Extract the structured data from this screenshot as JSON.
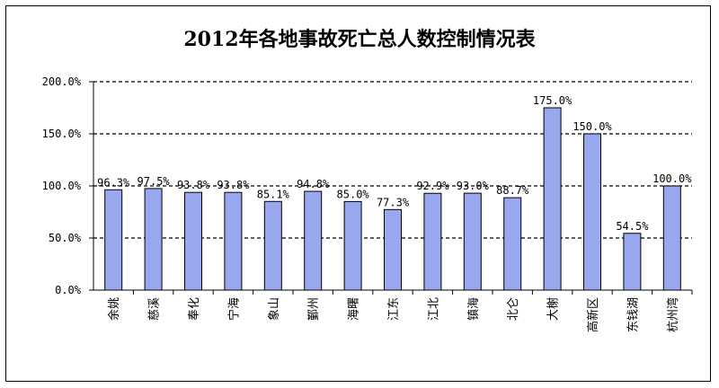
{
  "chart_data": {
    "type": "bar",
    "title": "2012年各地事故死亡总人数控制情况表",
    "categories": [
      "余姚",
      "慈溪",
      "奉化",
      "宁海",
      "象山",
      "鄞州",
      "海曙",
      "江东",
      "江北",
      "镇海",
      "北仑",
      "大榭",
      "高新区",
      "东钱湖",
      "杭州湾"
    ],
    "values": [
      96.3,
      97.5,
      93.8,
      93.8,
      85.1,
      94.8,
      85.0,
      77.3,
      92.9,
      93.0,
      88.7,
      175.0,
      150.0,
      54.5,
      100.0
    ],
    "value_labels": [
      "96.3%",
      "97.5%",
      "93.8%",
      "93.8%",
      "85.1%",
      "94.8%",
      "85.0%",
      "77.3%",
      "92.9%",
      "93.0%",
      "88.7%",
      "175.0%",
      "150.0%",
      "54.5%",
      "100.0%"
    ],
    "ylim": [
      0,
      200
    ],
    "yticks": [
      0,
      50,
      100,
      150,
      200
    ],
    "ytick_labels": [
      "0.0%",
      "50.0%",
      "100.0%",
      "150.0%",
      "200.0%"
    ],
    "xlabel": "",
    "ylabel": "",
    "grid": "dashed horizontal",
    "bar_color": "#99a8ee",
    "bar_edge_color": "#000000"
  }
}
